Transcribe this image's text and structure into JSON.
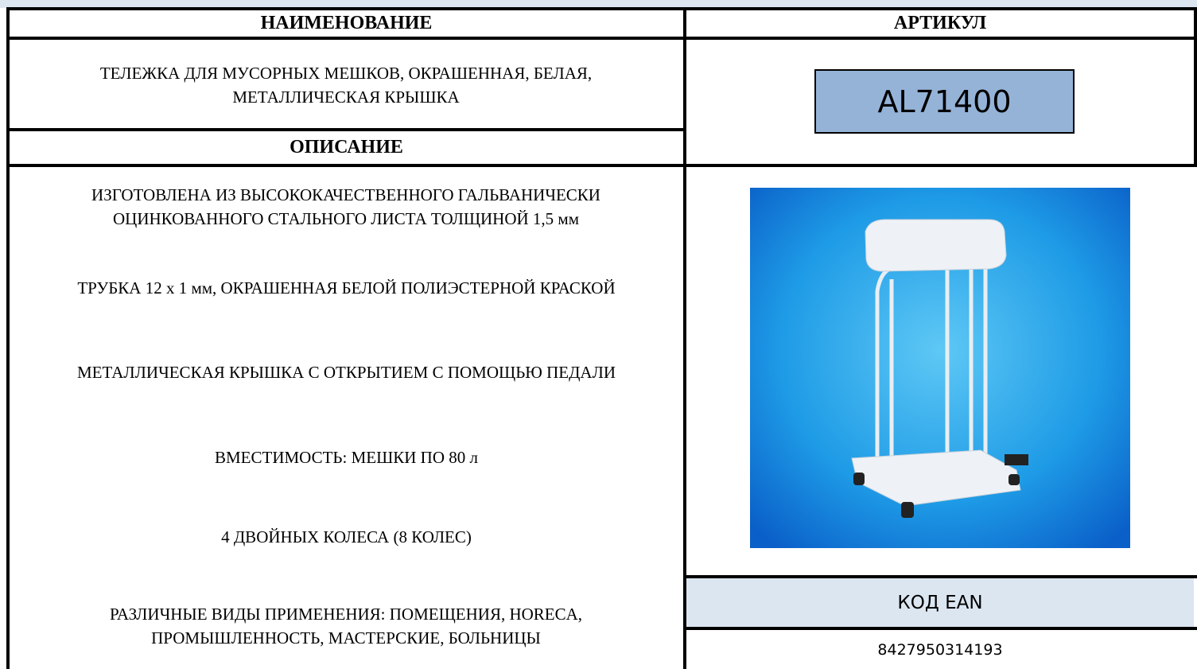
{
  "headers": {
    "name": "НАИМЕНОВАНИЕ",
    "article": "АРТИКУЛ",
    "description": "ОПИСАНИЕ",
    "ean": "КОД EAN"
  },
  "product_name": "ТЕЛЕЖКА ДЛЯ МУСОРНЫХ МЕШКОВ, ОКРАШЕННАЯ, БЕЛАЯ, МЕТАЛЛИЧЕСКАЯ КРЫШКА",
  "article_code": "AL71400",
  "description": [
    "ИЗГОТОВЛЕНА ИЗ ВЫСОКОКАЧЕСТВЕННОГО ГАЛЬВАНИЧЕСКИ ОЦИНКОВАННОГО СТАЛЬНОГО ЛИСТА ТОЛЩИНОЙ 1,5 мм",
    "ТРУБКА 12 х 1 мм, ОКРАШЕННАЯ БЕЛОЙ ПОЛИЭСТЕРНОЙ КРАСКОЙ",
    "МЕТАЛЛИЧЕСКАЯ КРЫШКА С ОТКРЫТИЕМ С ПОМОЩЬЮ ПЕДАЛИ",
    "ВМЕСТИМОСТЬ: МЕШКИ ПО 80 л",
    "4 ДВОЙНЫХ КОЛЕСА (8 КОЛЕС)",
    "РАЗЛИЧНЫЕ ВИДЫ ПРИМЕНЕНИЯ: ПОМЕЩЕНИЯ, HORECA, ПРОМЫШЛЕННОСТЬ, МАСТЕРСКИЕ, БОЛЬНИЦЫ"
  ],
  "ean_code": "8427950314193"
}
